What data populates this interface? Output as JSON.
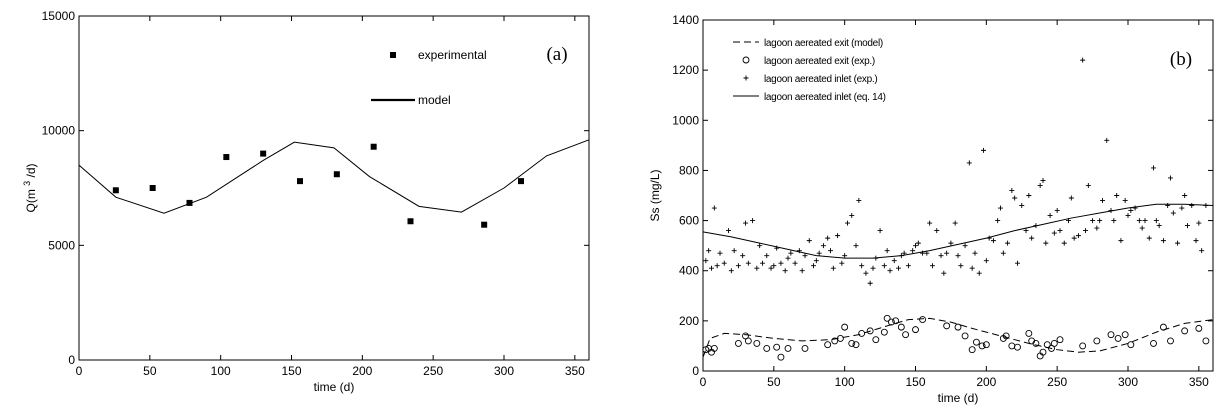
{
  "chart_data": [
    {
      "type": "scatter",
      "panel_label": "(a)",
      "xlabel": "time (d)",
      "ylabel": "Q(m 3/d)",
      "ylabel_parts": {
        "before": "Q(m",
        "sup": "3",
        "after": "/d)"
      },
      "xlim": [
        0,
        360
      ],
      "ylim": [
        0,
        15000
      ],
      "xticks": [
        0,
        50,
        100,
        150,
        200,
        250,
        300,
        350
      ],
      "yticks": [
        0,
        5000,
        10000,
        15000
      ],
      "grid": false,
      "legend_position": "top-right",
      "series": [
        {
          "name": "experimental",
          "style": "square-marker",
          "x": [
            26,
            52,
            78,
            104,
            130,
            156,
            182,
            208,
            234,
            286,
            312
          ],
          "y": [
            7400,
            7500,
            6850,
            8850,
            9000,
            7800,
            8100,
            9300,
            6050,
            5900,
            7800
          ]
        },
        {
          "name": "model",
          "style": "solid-line",
          "x": [
            0,
            26,
            60,
            90,
            110,
            130,
            152,
            180,
            205,
            240,
            270,
            300,
            330,
            360
          ],
          "y": [
            8500,
            7100,
            6400,
            7100,
            7900,
            8700,
            9500,
            9250,
            8000,
            6700,
            6450,
            7500,
            8900,
            9600
          ]
        }
      ]
    },
    {
      "type": "scatter",
      "panel_label": "(b)",
      "xlabel": "time (d)",
      "ylabel": "Ss (mg/L)",
      "xlim": [
        0,
        360
      ],
      "ylim": [
        0,
        1400
      ],
      "xticks": [
        0,
        50,
        100,
        150,
        200,
        250,
        300,
        350
      ],
      "yticks": [
        0,
        200,
        400,
        600,
        800,
        1000,
        1200,
        1400
      ],
      "grid": false,
      "legend_position": "top-left",
      "series": [
        {
          "name": "lagoon aereated  exit (model)",
          "style": "dashed-line",
          "x": [
            0,
            5,
            15,
            30,
            50,
            70,
            90,
            110,
            130,
            145,
            160,
            175,
            190,
            210,
            230,
            250,
            265,
            280,
            300,
            320,
            340,
            360
          ],
          "y": [
            55,
            130,
            150,
            145,
            130,
            120,
            125,
            145,
            180,
            205,
            210,
            195,
            170,
            140,
            110,
            85,
            75,
            80,
            110,
            155,
            190,
            205
          ]
        },
        {
          "name": "lagoon aereated  exit (exp.)",
          "style": "circle-marker",
          "x": [
            2,
            4,
            6,
            8,
            25,
            30,
            32,
            38,
            45,
            52,
            55,
            60,
            72,
            88,
            93,
            97,
            100,
            105,
            108,
            112,
            118,
            122,
            128,
            130,
            133,
            136,
            140,
            143,
            150,
            155,
            172,
            180,
            185,
            190,
            193,
            197,
            200,
            212,
            214,
            218,
            222,
            230,
            232,
            235,
            238,
            240,
            243,
            246,
            248,
            252,
            268,
            278,
            288,
            293,
            298,
            302,
            318,
            325,
            330,
            340,
            350,
            355
          ],
          "y": [
            85,
            90,
            75,
            90,
            110,
            140,
            120,
            110,
            90,
            95,
            55,
            90,
            90,
            105,
            120,
            130,
            175,
            110,
            105,
            150,
            160,
            125,
            155,
            210,
            195,
            200,
            175,
            145,
            165,
            205,
            180,
            175,
            140,
            85,
            115,
            100,
            105,
            130,
            140,
            100,
            95,
            150,
            120,
            110,
            60,
            75,
            105,
            90,
            110,
            125,
            100,
            120,
            145,
            130,
            145,
            105,
            110,
            175,
            120,
            160,
            170,
            120
          ]
        },
        {
          "name": "lagoon aereated  inlet (exp.)",
          "style": "plus-marker",
          "x": [
            2,
            4,
            6,
            8,
            10,
            12,
            15,
            18,
            20,
            22,
            25,
            28,
            30,
            32,
            35,
            38,
            40,
            42,
            45,
            48,
            50,
            52,
            55,
            58,
            60,
            62,
            65,
            68,
            70,
            72,
            75,
            78,
            80,
            82,
            85,
            88,
            90,
            92,
            95,
            98,
            100,
            102,
            105,
            108,
            110,
            112,
            115,
            118,
            120,
            122,
            125,
            128,
            130,
            132,
            135,
            138,
            140,
            142,
            145,
            148,
            150,
            152,
            155,
            158,
            160,
            162,
            165,
            168,
            170,
            172,
            175,
            178,
            180,
            182,
            185,
            188,
            190,
            192,
            195,
            198,
            200,
            202,
            205,
            208,
            210,
            212,
            215,
            218,
            220,
            222,
            225,
            228,
            230,
            232,
            235,
            238,
            240,
            242,
            245,
            248,
            250,
            252,
            255,
            258,
            260,
            262,
            265,
            268,
            270,
            272,
            275,
            278,
            280,
            282,
            285,
            288,
            290,
            292,
            295,
            298,
            300,
            302,
            305,
            308,
            310,
            312,
            315,
            318,
            320,
            322,
            325,
            328,
            330,
            332,
            335,
            338,
            340,
            342,
            345,
            348,
            350,
            352,
            355
          ],
          "y": [
            440,
            480,
            410,
            650,
            420,
            470,
            430,
            560,
            400,
            480,
            420,
            460,
            590,
            430,
            600,
            410,
            500,
            430,
            460,
            410,
            420,
            490,
            430,
            400,
            450,
            470,
            430,
            480,
            400,
            460,
            520,
            420,
            440,
            470,
            500,
            530,
            480,
            410,
            540,
            430,
            460,
            590,
            620,
            500,
            680,
            420,
            390,
            350,
            410,
            450,
            560,
            420,
            480,
            400,
            440,
            410,
            460,
            470,
            420,
            480,
            500,
            510,
            470,
            470,
            590,
            420,
            560,
            460,
            390,
            470,
            510,
            590,
            460,
            420,
            500,
            830,
            410,
            470,
            390,
            880,
            440,
            530,
            520,
            600,
            650,
            470,
            510,
            720,
            690,
            430,
            660,
            560,
            700,
            530,
            580,
            740,
            760,
            510,
            620,
            550,
            640,
            560,
            510,
            600,
            690,
            530,
            540,
            1240,
            560,
            740,
            600,
            570,
            600,
            680,
            920,
            640,
            600,
            700,
            520,
            680,
            620,
            640,
            650,
            600,
            570,
            600,
            530,
            810,
            600,
            580,
            520,
            660,
            770,
            630,
            510,
            650,
            700,
            580,
            660,
            520,
            590,
            480,
            660
          ]
        },
        {
          "name": "lagoon aereated  inlet (eq. 14)",
          "style": "solid-line",
          "x": [
            0,
            20,
            40,
            60,
            80,
            100,
            120,
            140,
            160,
            180,
            200,
            220,
            240,
            260,
            280,
            300,
            320,
            340,
            360
          ],
          "y": [
            555,
            535,
            510,
            485,
            460,
            450,
            450,
            460,
            480,
            505,
            530,
            560,
            585,
            610,
            630,
            650,
            665,
            665,
            660
          ]
        }
      ]
    }
  ]
}
